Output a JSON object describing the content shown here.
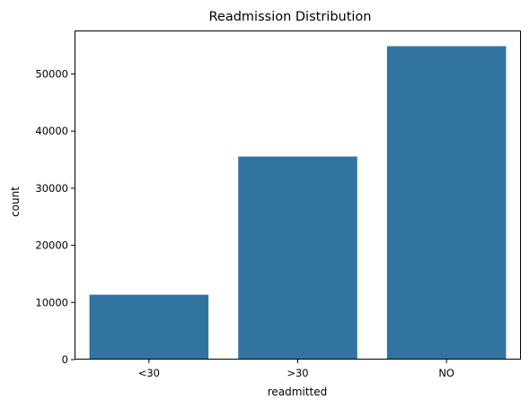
{
  "chart_data": {
    "type": "bar",
    "title": "Readmission Distribution",
    "xlabel": "readmitted",
    "ylabel": "count",
    "categories": [
      "<30",
      ">30",
      "NO"
    ],
    "values": [
      11357,
      35545,
      54864
    ],
    "ylim": [
      0,
      57610
    ],
    "yticks": [
      0,
      10000,
      20000,
      30000,
      40000,
      50000
    ],
    "ytick_labels": [
      "0",
      "10000",
      "20000",
      "30000",
      "40000",
      "50000"
    ],
    "grid": false,
    "legend": "none",
    "bar_color": "#3274a1"
  }
}
